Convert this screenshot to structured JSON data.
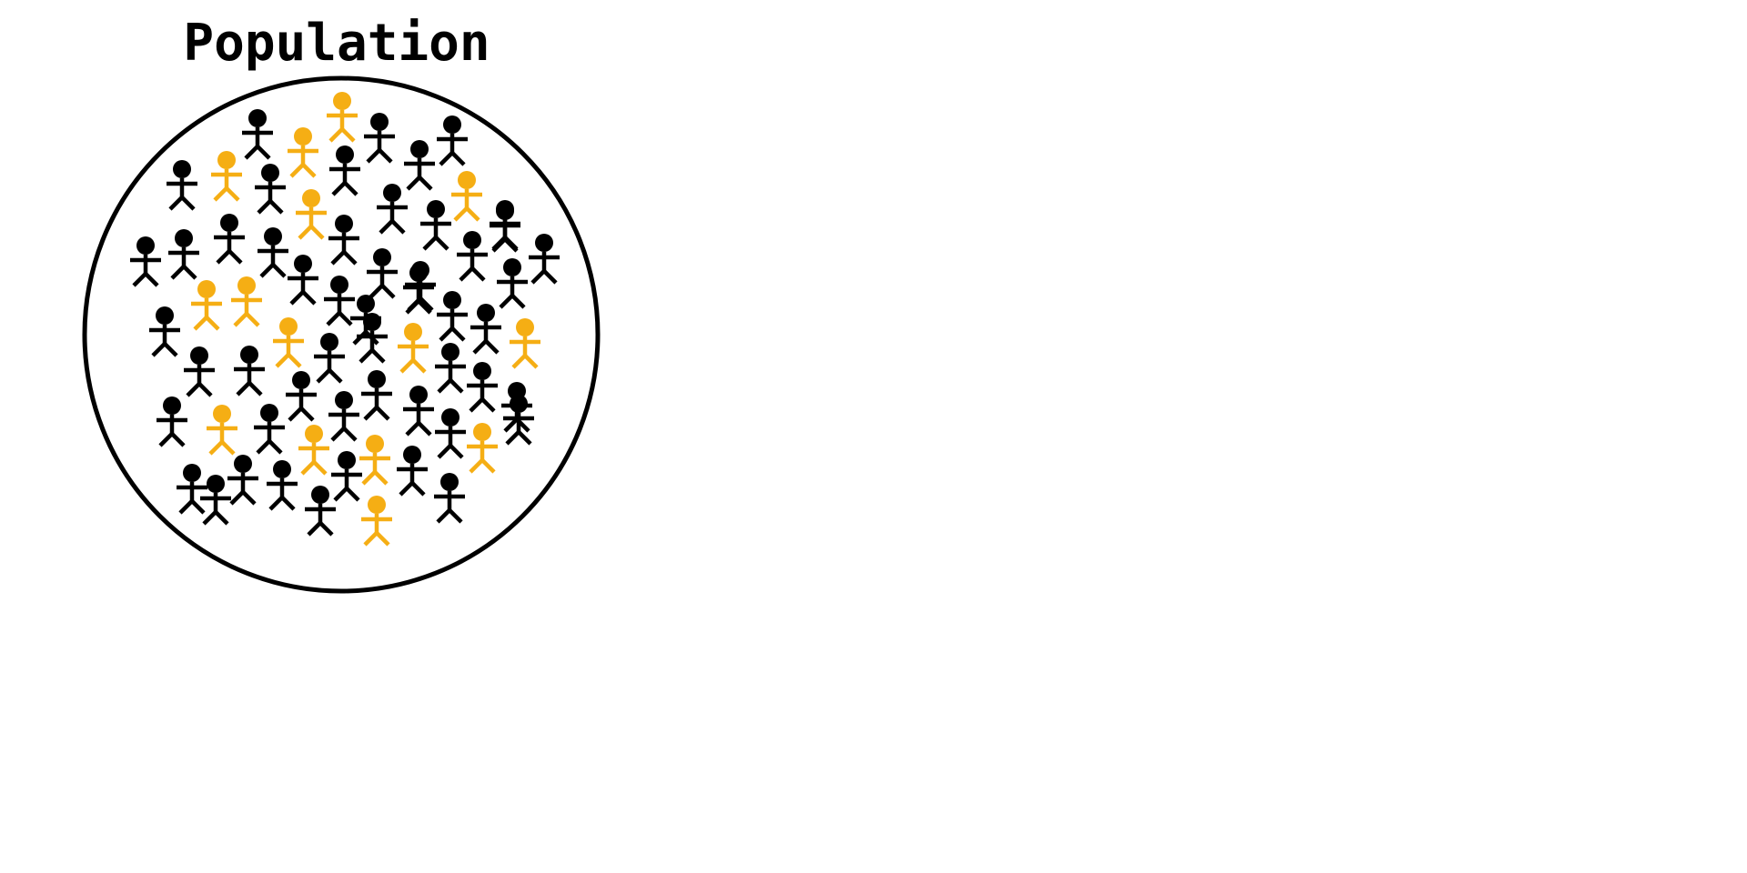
{
  "title": "Population",
  "colors": {
    "background": "#ffffff",
    "outline": "#000000",
    "regular_person": "#000000",
    "highlighted_person": "#f5ae14"
  },
  "legend": {
    "total_people": 66,
    "highlighted_people": 15
  }
}
